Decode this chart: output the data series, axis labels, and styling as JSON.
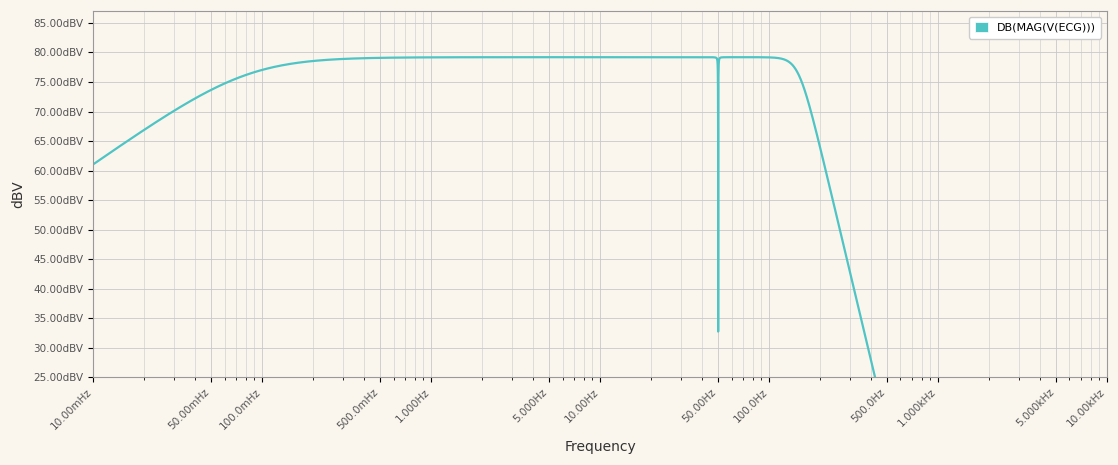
{
  "title": "",
  "xlabel": "Frequency",
  "ylabel": "dBV",
  "background_color": "#faf6ee",
  "plot_bg_color": "#faf6ee",
  "line_color": "#4ec4c4",
  "line_width": 1.6,
  "ylim": [
    25,
    87
  ],
  "yticks": [
    25,
    30,
    35,
    40,
    45,
    50,
    55,
    60,
    65,
    70,
    75,
    80,
    85
  ],
  "ytick_labels": [
    "25.00dBV",
    "30.00dBV",
    "35.00dBV",
    "40.00dBV",
    "45.00dBV",
    "50.00dBV",
    "55.00dBV",
    "60.00dBV",
    "65.00dBV",
    "70.00dBV",
    "75.00dBV",
    "80.00dBV",
    "85.00dBV"
  ],
  "freq_min": 0.01,
  "freq_max": 10000,
  "xtick_positions": [
    0.01,
    0.05,
    0.1,
    0.5,
    1.0,
    5.0,
    10.0,
    50.0,
    100.0,
    500.0,
    1000.0,
    5000.0,
    10000.0
  ],
  "xtick_labels": [
    "10.00mHz",
    "50.00mHz",
    "100.0mHz",
    "500.0mHz",
    "1.000Hz",
    "5.000Hz",
    "10.00Hz",
    "50.00Hz",
    "100.0Hz",
    "500.0Hz",
    "1.000kHz",
    "5.000kHz",
    "10.00kHz"
  ],
  "legend_label": "DB(MAG(V(ECG)))",
  "legend_color": "#4ec4c4",
  "grid_color": "#c8c8c8",
  "spine_color": "#999999",
  "hp_fc": 0.08,
  "lp_fc": 150.0,
  "lp_order": 6,
  "notch_fn": 50.0,
  "notch_Q": 120.0,
  "passband_gain_db": 79.2,
  "notch_min_db": 33.0
}
